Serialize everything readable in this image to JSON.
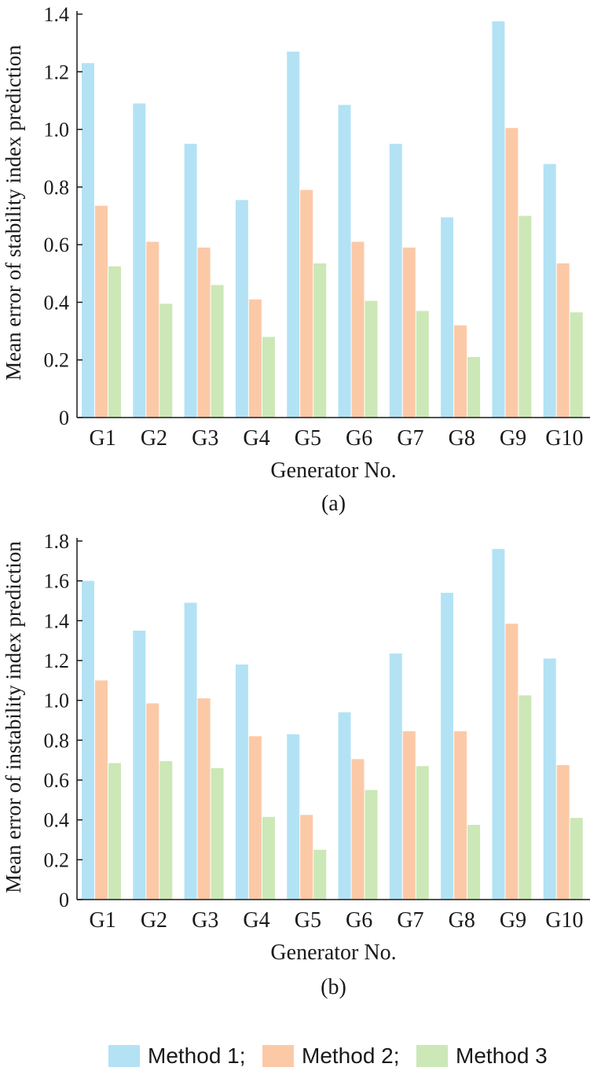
{
  "colors": {
    "method1": "#b3e2f5",
    "method2": "#fcc9a7",
    "method3": "#cbe8b6"
  },
  "legend": [
    {
      "label": "Method 1;",
      "color": "#b3e2f5"
    },
    {
      "label": "Method 2;",
      "color": "#fcc9a7"
    },
    {
      "label": "Method 3",
      "color": "#cbe8b6"
    }
  ],
  "chart_data": [
    {
      "type": "bar",
      "caption": "(a)",
      "xlabel": "Generator No.",
      "ylabel": "Mean error of stability index prediction",
      "ylim": [
        0,
        1.4
      ],
      "yticks": [
        "0",
        "0.2",
        "0.4",
        "0.6",
        "0.8",
        "1.0",
        "1.2",
        "1.4"
      ],
      "categories": [
        "G1",
        "G2",
        "G3",
        "G4",
        "G5",
        "G6",
        "G7",
        "G8",
        "G9",
        "G10"
      ],
      "series": [
        {
          "name": "Method 1",
          "values": [
            1.23,
            1.09,
            0.95,
            0.755,
            1.27,
            1.085,
            0.95,
            0.695,
            1.375,
            0.88
          ]
        },
        {
          "name": "Method 2",
          "values": [
            0.735,
            0.61,
            0.59,
            0.41,
            0.79,
            0.61,
            0.59,
            0.32,
            1.005,
            0.535
          ]
        },
        {
          "name": "Method 3",
          "values": [
            0.525,
            0.395,
            0.46,
            0.28,
            0.535,
            0.405,
            0.37,
            0.21,
            0.7,
            0.365
          ]
        }
      ]
    },
    {
      "type": "bar",
      "caption": "(b)",
      "xlabel": "Generator No.",
      "ylabel": "Mean error of instability index prediction",
      "ylim": [
        0,
        1.8
      ],
      "yticks": [
        "0",
        "0.2",
        "0.4",
        "0.6",
        "0.8",
        "1.0",
        "1.2",
        "1.4",
        "1.6",
        "1.8"
      ],
      "categories": [
        "G1",
        "G2",
        "G3",
        "G4",
        "G5",
        "G6",
        "G7",
        "G8",
        "G9",
        "G10"
      ],
      "series": [
        {
          "name": "Method 1",
          "values": [
            1.6,
            1.35,
            1.49,
            1.18,
            0.83,
            0.94,
            1.235,
            1.54,
            1.76,
            1.21
          ]
        },
        {
          "name": "Method 2",
          "values": [
            1.1,
            0.985,
            1.01,
            0.82,
            0.425,
            0.705,
            0.845,
            0.845,
            1.385,
            0.675
          ]
        },
        {
          "name": "Method 3",
          "values": [
            0.685,
            0.695,
            0.66,
            0.415,
            0.25,
            0.55,
            0.67,
            0.375,
            1.025,
            0.41
          ]
        }
      ]
    }
  ]
}
